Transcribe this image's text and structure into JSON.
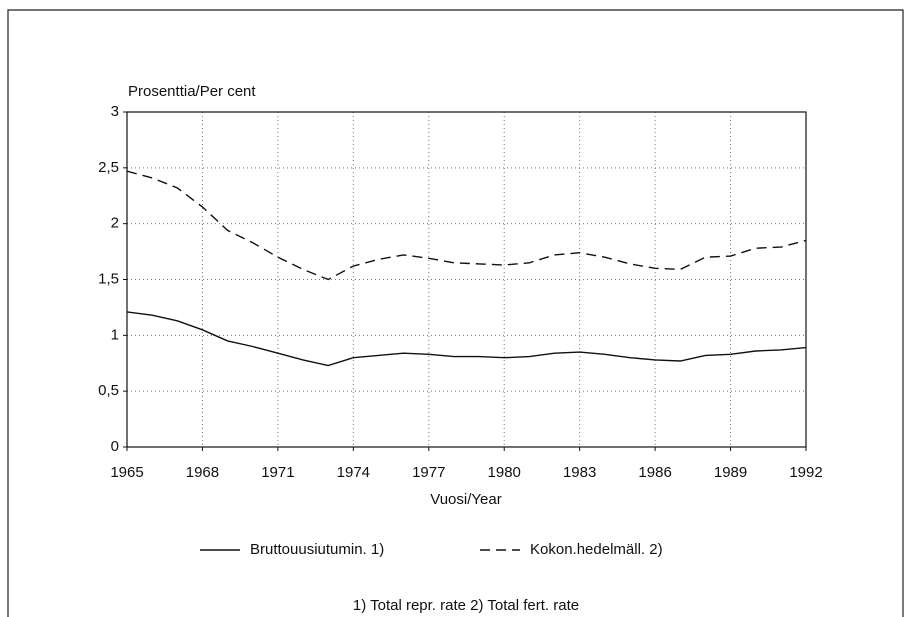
{
  "chart_data": {
    "type": "line",
    "y_label": "Prosenttia/Per cent",
    "x_label": "Vuosi/Year",
    "footnote": "1) Total repr. rate  2) Total fert. rate",
    "x": [
      1965,
      1966,
      1967,
      1968,
      1969,
      1970,
      1971,
      1972,
      1973,
      1974,
      1975,
      1976,
      1977,
      1978,
      1979,
      1980,
      1981,
      1982,
      1983,
      1984,
      1985,
      1986,
      1987,
      1988,
      1989,
      1990,
      1991,
      1992
    ],
    "series": [
      {
        "name": "Bruttouusiutumin. 1)",
        "color": "#111111",
        "style": "solid",
        "values": [
          1.21,
          1.18,
          1.13,
          1.05,
          0.95,
          0.9,
          0.84,
          0.78,
          0.73,
          0.8,
          0.82,
          0.84,
          0.83,
          0.81,
          0.81,
          0.8,
          0.81,
          0.84,
          0.85,
          0.83,
          0.8,
          0.78,
          0.77,
          0.82,
          0.83,
          0.86,
          0.87,
          0.89
        ]
      },
      {
        "name": "Kokon.hedelmäll. 2)",
        "color": "#111111",
        "style": "dashed",
        "values": [
          2.47,
          2.41,
          2.32,
          2.15,
          1.94,
          1.83,
          1.7,
          1.59,
          1.5,
          1.62,
          1.68,
          1.72,
          1.69,
          1.65,
          1.64,
          1.63,
          1.65,
          1.72,
          1.74,
          1.7,
          1.64,
          1.6,
          1.59,
          1.7,
          1.71,
          1.78,
          1.79,
          1.85
        ]
      }
    ],
    "xlim": [
      1965,
      1992
    ],
    "xticks": [
      1965,
      1968,
      1971,
      1974,
      1977,
      1980,
      1983,
      1986,
      1989,
      1992
    ],
    "ylim": [
      0,
      3
    ],
    "yticks": [
      0,
      {
        "value": 0.5,
        "label": "0,5"
      },
      1,
      {
        "value": 1.5,
        "label": "1,5"
      },
      2,
      {
        "value": 2.5,
        "label": "2,5"
      },
      3
    ],
    "grid": true
  }
}
